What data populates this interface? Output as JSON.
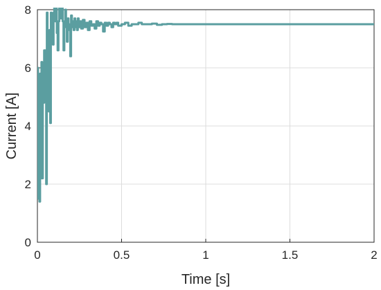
{
  "chart_data": {
    "type": "line",
    "title": "",
    "xlabel": "Time [s]",
    "ylabel": "Current [A]",
    "xlim": [
      0,
      2
    ],
    "ylim": [
      0,
      8
    ],
    "xticks": [
      0,
      0.5,
      1,
      1.5,
      2
    ],
    "xtick_labels": [
      "0",
      "0.5",
      "1",
      "1.5",
      "2"
    ],
    "yticks": [
      0,
      2,
      4,
      6,
      8
    ],
    "ytick_labels": [
      "0",
      "2",
      "4",
      "6",
      "8"
    ],
    "grid": true,
    "series": [
      {
        "color": "#5b9ea0",
        "x": [
          0,
          0.004,
          0.008,
          0.012,
          0.016,
          0.02,
          0.024,
          0.028,
          0.032,
          0.036,
          0.04,
          0.044,
          0.048,
          0.052,
          0.056,
          0.06,
          0.064,
          0.068,
          0.072,
          0.076,
          0.08,
          0.084,
          0.088,
          0.092,
          0.096,
          0.1,
          0.105,
          0.11,
          0.115,
          0.12,
          0.125,
          0.13,
          0.135,
          0.14,
          0.145,
          0.15,
          0.155,
          0.16,
          0.165,
          0.17,
          0.175,
          0.18,
          0.185,
          0.19,
          0.195,
          0.2,
          0.205,
          0.21,
          0.215,
          0.22,
          0.225,
          0.23,
          0.235,
          0.24,
          0.245,
          0.25,
          0.26,
          0.27,
          0.28,
          0.29,
          0.3,
          0.31,
          0.32,
          0.33,
          0.34,
          0.35,
          0.36,
          0.37,
          0.38,
          0.39,
          0.4,
          0.41,
          0.42,
          0.43,
          0.44,
          0.45,
          0.46,
          0.47,
          0.48,
          0.5,
          0.52,
          0.54,
          0.56,
          0.58,
          0.6,
          0.62,
          0.65,
          0.68,
          0.71,
          0.74,
          0.77,
          0.8,
          0.85,
          0.9,
          0.95,
          1.0,
          1.1,
          1.2,
          1.3,
          1.4,
          1.5,
          1.6,
          1.7,
          1.8,
          1.9,
          2.0
        ],
        "y": [
          6.0,
          1.5,
          4.8,
          1.4,
          5.8,
          2.2,
          6.2,
          2.2,
          6.0,
          4.8,
          6.6,
          5.5,
          6.6,
          2.0,
          7.9,
          5.0,
          6.8,
          4.5,
          7.3,
          4.1,
          7.9,
          7.0,
          7.6,
          6.8,
          7.9,
          8.1,
          7.6,
          8.2,
          7.2,
          6.6,
          7.6,
          8.2,
          7.9,
          7.7,
          8.1,
          7.6,
          6.6,
          7.5,
          8.0,
          7.4,
          6.9,
          7.7,
          7.5,
          7.3,
          6.4,
          7.8,
          7.4,
          7.6,
          7.3,
          7.7,
          7.4,
          7.6,
          7.3,
          7.7,
          7.4,
          7.6,
          7.35,
          7.65,
          7.4,
          7.55,
          7.3,
          7.6,
          7.45,
          7.5,
          7.35,
          7.6,
          7.45,
          7.55,
          7.5,
          7.25,
          7.55,
          7.45,
          7.55,
          7.5,
          7.4,
          7.55,
          7.5,
          7.55,
          7.45,
          7.5,
          7.55,
          7.45,
          7.5,
          7.5,
          7.55,
          7.5,
          7.5,
          7.52,
          7.48,
          7.5,
          7.51,
          7.5,
          7.5,
          7.5,
          7.5,
          7.5,
          7.5,
          7.5,
          7.5,
          7.5,
          7.5,
          7.5,
          7.5,
          7.5,
          7.5,
          7.5
        ]
      }
    ]
  }
}
